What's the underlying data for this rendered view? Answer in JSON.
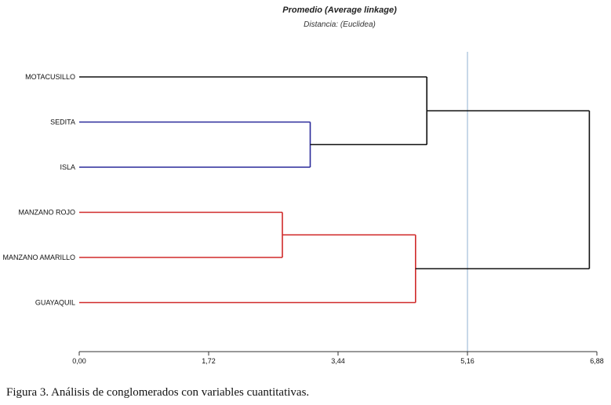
{
  "chart_data": {
    "type": "dendrogram",
    "title": "Promedio (Average linkage)",
    "subtitle": "Distancia: (Euclidea)",
    "x_axis": {
      "min": 0,
      "max": 6.88,
      "ticks": [
        0,
        1.72,
        3.44,
        5.16,
        6.88
      ],
      "tick_labels": [
        "0,00",
        "1,72",
        "3,44",
        "5,16",
        "6,88"
      ]
    },
    "cut_line": 5.16,
    "leaves": [
      {
        "label": "MOTACUSILLO",
        "color": "#2e9e3a"
      },
      {
        "label": "SEDITA",
        "color": "#2a2a9a"
      },
      {
        "label": "ISLA",
        "color": "#2a2a9a"
      },
      {
        "label": "MANZANO ROJO",
        "color": "#d02a2a"
      },
      {
        "label": "MANZANO AMARILLO",
        "color": "#d02a2a"
      },
      {
        "label": "GUAYAQUIL",
        "color": "#d02a2a"
      }
    ],
    "merges": [
      {
        "left": "SEDITA",
        "right": "ISLA",
        "distance": 3.07,
        "color": "#2a2a9a"
      },
      {
        "left": "MANZANO ROJO",
        "right": "MANZANO AMARILLO",
        "distance": 2.7,
        "color": "#d02a2a"
      },
      {
        "left": "MANZANO ROJO+MANZANO AMARILLO",
        "right": "GUAYAQUIL",
        "distance": 4.47,
        "color": "#d02a2a"
      },
      {
        "left": "MOTACUSILLO",
        "right": "SEDITA+ISLA",
        "distance": 4.62,
        "color": "#111111"
      },
      {
        "left": "MOTACUSILLO+SEDITA+ISLA",
        "right": "MANZANO ROJO+MANZANO AMARILLO+GUAYAQUIL",
        "distance": 6.78,
        "color": "#111111"
      }
    ],
    "colors": {
      "cut_line": "#8fb0d0",
      "axis": "#333333",
      "root": "#111111"
    }
  },
  "caption": "Figura 3. Análisis de conglomerados con variables cuantitativas."
}
